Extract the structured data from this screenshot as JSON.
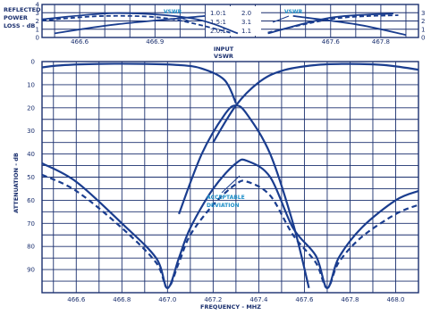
{
  "chart_data": [
    {
      "type": "line",
      "panel": "top",
      "ylabel_lines": [
        "REFLECTED",
        "POWER",
        "LOSS - dB"
      ],
      "xlabel_lines": [
        "INPUT",
        "VSWR"
      ],
      "x_ticks": [
        "466.6",
        "466.9",
        "467.6",
        "467.8"
      ],
      "y_left_ticks": [
        "0",
        "1",
        "2",
        "3",
        "4"
      ],
      "y_right_ticks": [
        "0",
        "1",
        "2",
        "3"
      ],
      "center_table": [
        {
          "left": "1.0:1",
          "right": "2.0"
        },
        {
          "left": "1.5:1",
          "right": "3.1"
        },
        {
          "left": "2.0:1",
          "right": "1.1"
        }
      ],
      "annotations": [
        "VSWR",
        "VSWR"
      ],
      "xlim": [
        466.45,
        467.95
      ],
      "ylim": [
        0,
        4
      ],
      "series": [
        {
          "style": "solid",
          "x": [
            466.45,
            466.75,
            467.05,
            467.23
          ],
          "y": [
            2.2,
            2.95,
            2.3,
            0.5
          ]
        },
        {
          "style": "solid",
          "x": [
            466.5,
            466.75,
            467.1
          ],
          "y": [
            0.5,
            1.6,
            2.6
          ]
        },
        {
          "style": "dashed",
          "x": [
            466.45,
            466.7,
            466.95,
            467.2
          ],
          "y": [
            2.05,
            2.6,
            2.3,
            0.6
          ]
        },
        {
          "style": "solid",
          "x": [
            467.35,
            467.6,
            467.85
          ],
          "y": [
            0.5,
            2.4,
            2.9
          ]
        },
        {
          "style": "solid",
          "x": [
            467.45,
            467.7,
            467.9
          ],
          "y": [
            2.6,
            1.6,
            0.3
          ]
        },
        {
          "style": "dashed",
          "x": [
            467.35,
            467.62,
            467.87
          ],
          "y": [
            0.6,
            2.3,
            2.7
          ]
        }
      ]
    },
    {
      "type": "line",
      "panel": "main",
      "ylabel": "ATTENUATION - dB",
      "xlabel": "FREQUENCY - MHZ",
      "x_ticks": [
        "466.6",
        "466.8",
        "467.0",
        "467.2",
        "467.4",
        "467.6",
        "467.8",
        "468.0"
      ],
      "y_ticks": [
        "0",
        "10",
        "20",
        "30",
        "40",
        "50",
        "60",
        "70",
        "80",
        "90"
      ],
      "xlim": [
        466.45,
        468.1
      ],
      "ylim": [
        0,
        100
      ],
      "annotation": [
        "ACCEPTABLE",
        "DEVIATION"
      ],
      "series": [
        {
          "style": "solid",
          "x": [
            466.45,
            466.55,
            466.7,
            466.9,
            467.05,
            467.15,
            467.25,
            467.3
          ],
          "y": [
            2.5,
            1.5,
            1.0,
            1.0,
            1.5,
            3.0,
            8.0,
            18.0
          ]
        },
        {
          "style": "solid",
          "x": [
            467.2,
            467.3,
            467.4,
            467.5,
            467.65,
            467.8,
            467.95,
            468.1
          ],
          "y": [
            35.0,
            19.0,
            9.0,
            4.0,
            1.5,
            1.0,
            1.5,
            3.5
          ]
        },
        {
          "style": "solid",
          "x": [
            467.05,
            467.15,
            467.25,
            467.3,
            467.35,
            467.45,
            467.55,
            467.62
          ],
          "y": [
            66.0,
            40.0,
            23.0,
            19.0,
            23.0,
            40.0,
            70.0,
            98.0
          ]
        },
        {
          "style": "solid",
          "x": [
            466.45,
            466.6,
            466.8,
            466.95,
            467.0,
            467.05,
            467.1,
            467.2,
            467.3,
            467.35,
            467.45,
            467.55,
            467.65,
            467.7,
            467.75,
            467.85,
            468.0,
            468.1
          ],
          "y": [
            44.0,
            52.0,
            70.0,
            85.0,
            98.0,
            85.0,
            72.0,
            55.0,
            44.0,
            43.0,
            50.0,
            72.0,
            84.0,
            98.0,
            85.0,
            72.0,
            60.0,
            56.0
          ]
        },
        {
          "style": "dashed",
          "x": [
            466.45,
            466.6,
            466.8,
            466.95,
            467.0,
            467.05,
            467.1,
            467.2,
            467.3,
            467.35,
            467.45,
            467.55,
            467.65,
            467.7,
            467.75,
            467.85,
            468.0,
            468.1
          ],
          "y": [
            49.0,
            56.0,
            72.0,
            87.0,
            98.0,
            87.0,
            75.0,
            62.0,
            53.0,
            52.0,
            58.0,
            75.0,
            87.0,
            98.0,
            87.0,
            76.0,
            66.0,
            62.0
          ]
        }
      ]
    }
  ],
  "colors": {
    "line": "#1a3d8f",
    "grid": "#1a2f6e",
    "text": "#1a2f6e",
    "annotation": "#1f8fc8"
  }
}
